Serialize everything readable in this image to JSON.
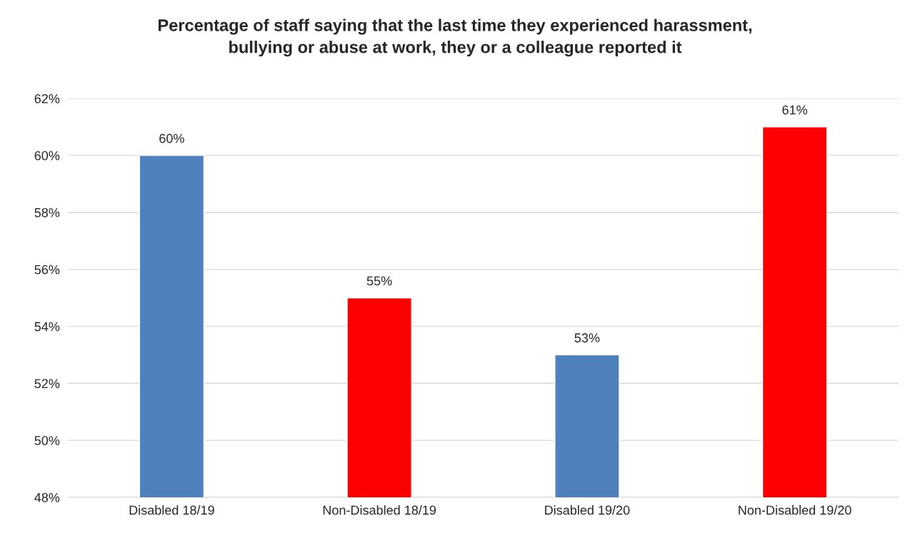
{
  "chart_data": {
    "type": "bar",
    "title": "Percentage of staff saying that the last time they experienced harassment,\nbullying or abuse at work, they or a colleague reported it",
    "categories": [
      "Disabled 18/19",
      "Non-Disabled 18/19",
      "Disabled 19/20",
      "Non-Disabled 19/20"
    ],
    "values": [
      60,
      55,
      53,
      61
    ],
    "colors": [
      "#4f81bd",
      "#ff0000",
      "#4f81bd",
      "#ff0000"
    ],
    "value_labels": [
      "60%",
      "55%",
      "53%",
      "61%"
    ],
    "ylim": [
      48,
      62
    ],
    "yticks": [
      {
        "value": 48,
        "label": "48%"
      },
      {
        "value": 50,
        "label": "50%"
      },
      {
        "value": 52,
        "label": "52%"
      },
      {
        "value": 54,
        "label": "54%"
      },
      {
        "value": 56,
        "label": "56%"
      },
      {
        "value": 58,
        "label": "58%"
      },
      {
        "value": 60,
        "label": "60%"
      },
      {
        "value": 62,
        "label": "62%"
      }
    ],
    "grid": "y"
  }
}
